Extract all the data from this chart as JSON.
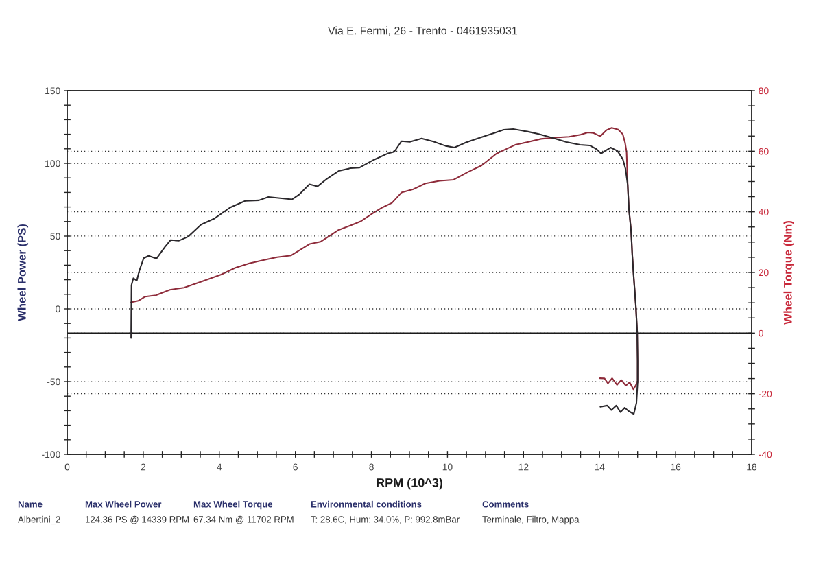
{
  "chart_data": {
    "type": "line",
    "xlabel": "RPM (10^3)",
    "ylabel": "Wheel Power (PS)",
    "y2label": "Wheel Torque (Nm)",
    "annotations": [
      "Via E. Fermi, 26 - Trento - 0461935031",
      "Name",
      "Max Wheel Power",
      "Max Wheel Torque",
      "Environmental conditions",
      "Comments",
      "Albertini_2",
      "124.36 PS @ 14339 RPM",
      "67.34 Nm @ 11702 RPM",
      "T: 28.6C, Hum: 34.0%, P: 992.8mBar",
      "Terminale, Filtro, Mappa"
    ],
    "xlim": [
      0,
      18
    ],
    "ylim": [
      -100,
      150
    ],
    "y2lim": [
      -40,
      80
    ],
    "xticks": [
      0,
      {
        "value": 0.5,
        "label": null
      },
      {
        "value": 1,
        "label": null
      },
      {
        "value": 1.5,
        "label": null
      },
      2,
      {
        "value": 2.5,
        "label": null
      },
      {
        "value": 3,
        "label": null
      },
      {
        "value": 3.5,
        "label": null
      },
      4,
      {
        "value": 4.5,
        "label": null
      },
      {
        "value": 5,
        "label": null
      },
      {
        "value": 5.5,
        "label": null
      },
      6,
      {
        "value": 6.5,
        "label": null
      },
      {
        "value": 7,
        "label": null
      },
      {
        "value": 7.5,
        "label": null
      },
      8,
      {
        "value": 8.5,
        "label": null
      },
      {
        "value": 9,
        "label": null
      },
      {
        "value": 9.5,
        "label": null
      },
      10,
      {
        "value": 10.5,
        "label": null
      },
      {
        "value": 11,
        "label": null
      },
      {
        "value": 11.5,
        "label": null
      },
      12,
      {
        "value": 12.5,
        "label": null
      },
      {
        "value": 13,
        "label": null
      },
      {
        "value": 13.5,
        "label": null
      },
      14,
      {
        "value": 14.5,
        "label": null
      },
      {
        "value": 15,
        "label": null
      },
      {
        "value": 15.5,
        "label": null
      },
      16,
      {
        "value": 16.5,
        "label": null
      },
      {
        "value": 17,
        "label": null
      },
      {
        "value": 17.5,
        "label": null
      },
      18
    ],
    "yticks": [
      -100,
      {
        "value": -90,
        "label": null
      },
      {
        "value": -80,
        "label": null
      },
      {
        "value": -70,
        "label": null
      },
      {
        "value": -60,
        "label": null
      },
      -50,
      {
        "value": -40,
        "label": null
      },
      {
        "value": -30,
        "label": null
      },
      {
        "value": -20,
        "label": null
      },
      {
        "value": -10,
        "label": null
      },
      0,
      {
        "value": 10,
        "label": null
      },
      {
        "value": 20,
        "label": null
      },
      {
        "value": 30,
        "label": null
      },
      {
        "value": 40,
        "label": null
      },
      50,
      {
        "value": 60,
        "label": null
      },
      {
        "value": 70,
        "label": null
      },
      {
        "value": 80,
        "label": null
      },
      {
        "value": 90,
        "label": null
      },
      100,
      {
        "value": 110,
        "label": null
      },
      {
        "value": 120,
        "label": null
      },
      {
        "value": 130,
        "label": null
      },
      {
        "value": 140,
        "label": null
      },
      150
    ],
    "y2ticks": [
      -40,
      {
        "value": -35,
        "label": null
      },
      {
        "value": -30,
        "label": null
      },
      {
        "value": -25,
        "label": null
      },
      -20,
      {
        "value": -15,
        "label": null
      },
      {
        "value": -10,
        "label": null
      },
      {
        "value": -5,
        "label": null
      },
      0,
      {
        "value": 5,
        "label": null
      },
      {
        "value": 10,
        "label": null
      },
      {
        "value": 15,
        "label": null
      },
      20,
      {
        "value": 25,
        "label": null
      },
      {
        "value": 30,
        "label": null
      },
      {
        "value": 35,
        "label": null
      },
      40,
      {
        "value": 45,
        "label": null
      },
      {
        "value": 50,
        "label": null
      },
      {
        "value": 55,
        "label": null
      },
      60,
      {
        "value": 65,
        "label": null
      },
      {
        "value": 70,
        "label": null
      },
      {
        "value": 75,
        "label": null
      },
      80
    ],
    "grid": "y",
    "ref_lines": [
      {
        "axis": "y2",
        "value": 0,
        "color": "#1a1a1a",
        "line_style": "solid"
      }
    ],
    "series": [
      {
        "color": "#8e2b3a",
        "x": [
          1.68,
          1.87,
          2.05,
          2.33,
          2.7,
          3.07,
          3.56,
          4.05,
          4.42,
          4.79,
          5.16,
          5.52,
          5.89,
          6.14,
          6.38,
          6.66,
          7.12,
          7.43,
          7.73,
          8.04,
          8.29,
          8.54,
          8.79,
          9.1,
          9.42,
          9.79,
          10.16,
          10.53,
          10.9,
          11.28,
          11.4,
          11.78,
          12.09,
          12.46,
          12.83,
          13.2,
          13.5,
          13.69,
          13.84,
          14.02,
          14.18,
          14.32,
          14.49,
          14.61,
          14.67,
          14.71,
          14.74,
          14.77,
          14.83,
          14.86,
          14.9,
          14.95,
          14.99,
          15.0,
          15.0,
          14.89,
          14.79,
          14.69,
          14.57,
          14.46,
          14.33,
          14.22,
          14.13,
          14.01
        ],
        "values": [
          4.5,
          5.5,
          8.4,
          9.3,
          13.1,
          14.5,
          19,
          23.6,
          28.2,
          31.3,
          33.5,
          35.5,
          36.7,
          40.7,
          44.6,
          46.1,
          54,
          57.1,
          60.3,
          65.7,
          69.7,
          72.8,
          79.9,
          82.2,
          86.2,
          88,
          88.7,
          93.9,
          98.6,
          106.5,
          108.1,
          112.7,
          114.5,
          116.8,
          117.7,
          118.3,
          119.7,
          121.2,
          120.9,
          118.6,
          122.8,
          124.4,
          123.2,
          120,
          114.2,
          107.8,
          85.4,
          69.5,
          53.5,
          37.5,
          21.6,
          3.1,
          -16.5,
          -35.7,
          -50.4,
          -55.3,
          -50.5,
          -52.8,
          -48.9,
          -52.3,
          -47.7,
          -51.2,
          -47.8,
          -47.7
        ]
      },
      {
        "color": "#2b282c",
        "axis": "y2",
        "x": [
          1.68,
          1.69,
          1.74,
          1.83,
          1.89,
          2.01,
          2.14,
          2.35,
          2.57,
          2.72,
          2.94,
          3.18,
          3.52,
          3.86,
          4.28,
          4.68,
          5.04,
          5.29,
          5.6,
          5.91,
          6.09,
          6.37,
          6.58,
          6.83,
          7.14,
          7.45,
          7.69,
          8.07,
          8.44,
          8.6,
          8.79,
          9.01,
          9.32,
          9.63,
          9.94,
          10.18,
          10.49,
          10.86,
          11.23,
          11.48,
          11.73,
          12.1,
          12.4,
          12.77,
          13.13,
          13.49,
          13.74,
          13.92,
          14.04,
          14.16,
          14.29,
          14.47,
          14.61,
          14.68,
          14.74,
          14.77,
          14.83,
          14.86,
          14.9,
          14.95,
          14.99,
          15.0,
          15.0,
          14.97,
          14.9,
          14.77,
          14.66,
          14.55,
          14.44,
          14.31,
          14.2,
          14.02
        ],
        "values": [
          -1.6,
          15.8,
          18.1,
          17.3,
          20.3,
          24.7,
          25.5,
          24.6,
          28.4,
          30.7,
          30.5,
          31.8,
          35.8,
          37.7,
          41.4,
          43.6,
          43.8,
          44.9,
          44.5,
          44.1,
          45.6,
          49.1,
          48.4,
          50.9,
          53.5,
          54.4,
          54.6,
          57.2,
          59.3,
          59.8,
          63.3,
          63.1,
          64.2,
          63.2,
          61.8,
          61.2,
          62.9,
          64.5,
          66.0,
          67.1,
          67.3,
          66.5,
          65.7,
          64.4,
          63.0,
          62.1,
          61.9,
          60.7,
          59.2,
          60.2,
          61.2,
          60.1,
          57.4,
          54.3,
          48.9,
          41.1,
          33.4,
          25.7,
          18.0,
          9.8,
          0.3,
          -9.0,
          -16.3,
          -23.0,
          -26.7,
          -25.8,
          -24.6,
          -26.1,
          -23.9,
          -25.4,
          -23.9,
          -24.3
        ]
      }
    ]
  }
}
